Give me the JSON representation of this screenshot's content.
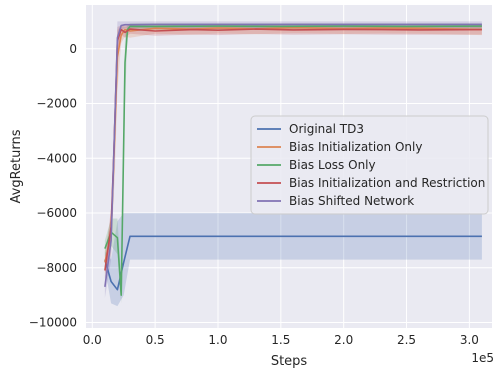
{
  "chart_data": {
    "type": "line",
    "xlabel": "Steps",
    "ylabel": "AvgReturns",
    "x_offset_label": "1e5",
    "xlim": [
      -0.05,
      3.18
    ],
    "ylim": [
      -10200,
      1600
    ],
    "xticks": [
      0.0,
      0.5,
      1.0,
      1.5,
      2.0,
      2.5,
      3.0
    ],
    "xtick_labels": [
      "0.0",
      "0.5",
      "1.0",
      "1.5",
      "2.0",
      "2.5",
      "3.0"
    ],
    "yticks": [
      0,
      -2000,
      -4000,
      -6000,
      -8000,
      -10000
    ],
    "ytick_labels": [
      "0",
      "−2000",
      "−4000",
      "−6000",
      "−8000",
      "−10000"
    ],
    "grid": true,
    "legend_position": "center-right",
    "background_color": "#eaeaf2",
    "series": [
      {
        "name": "Original TD3",
        "color": "#4c72b0",
        "x": [
          0.1,
          0.15,
          0.2,
          0.25,
          0.3,
          0.5,
          1.0,
          1.5,
          2.0,
          2.5,
          3.1
        ],
        "y": [
          -7700,
          -8500,
          -8800,
          -7800,
          -6850,
          -6850,
          -6850,
          -6850,
          -6850,
          -6850,
          -6850
        ],
        "band_low": [
          -8000,
          -9300,
          -9400,
          -9000,
          -7700,
          -7700,
          -7700,
          -7700,
          -7700,
          -7700,
          -7700
        ],
        "band_high": [
          -7400,
          -7700,
          -6300,
          -6000,
          -6000,
          -6000,
          -6000,
          -6000,
          -6000,
          -6000,
          -6000
        ]
      },
      {
        "name": "Bias Initialization Only",
        "color": "#dd8452",
        "x": [
          0.1,
          0.15,
          0.18,
          0.2,
          0.23,
          0.26,
          0.3,
          0.5,
          0.8,
          1.0,
          1.3,
          1.6,
          2.0,
          2.3,
          2.6,
          3.1
        ],
        "y": [
          -7800,
          -6800,
          -3000,
          -300,
          500,
          700,
          650,
          750,
          720,
          760,
          730,
          770,
          740,
          760,
          750,
          700
        ],
        "band_low": [
          -8200,
          -7500,
          -4500,
          -1500,
          200,
          450,
          400,
          550,
          520,
          560,
          530,
          570,
          540,
          560,
          550,
          500
        ],
        "band_high": [
          -7400,
          -6100,
          -1500,
          700,
          800,
          900,
          850,
          900,
          880,
          910,
          890,
          920,
          900,
          910,
          900,
          880
        ]
      },
      {
        "name": "Bias Loss Only",
        "color": "#55a868",
        "x": [
          0.1,
          0.15,
          0.2,
          0.23,
          0.26,
          0.28,
          0.3,
          0.5,
          1.0,
          1.5,
          2.0,
          2.5,
          3.1
        ],
        "y": [
          -7300,
          -6700,
          -6900,
          -9000,
          -500,
          700,
          820,
          820,
          830,
          820,
          830,
          820,
          830
        ],
        "band_low": [
          -7600,
          -7200,
          -7500,
          -9300,
          -2000,
          500,
          700,
          700,
          700,
          700,
          700,
          700,
          700
        ],
        "band_high": [
          -7000,
          -6200,
          -6200,
          -8400,
          500,
          850,
          930,
          930,
          930,
          930,
          930,
          930,
          930
        ]
      },
      {
        "name": "Bias Initialization and Restriction",
        "color": "#c44e52",
        "x": [
          0.1,
          0.15,
          0.17,
          0.2,
          0.23,
          0.26,
          0.3,
          0.5,
          0.8,
          1.0,
          1.3,
          1.6,
          2.0,
          2.3,
          2.6,
          3.1
        ],
        "y": [
          -8100,
          -6500,
          -4000,
          300,
          700,
          600,
          720,
          650,
          700,
          680,
          720,
          690,
          710,
          700,
          690,
          700
        ],
        "band_low": [
          -8400,
          -7200,
          -5000,
          -500,
          500,
          400,
          550,
          480,
          520,
          500,
          540,
          510,
          530,
          520,
          510,
          520
        ],
        "band_high": [
          -7800,
          -5800,
          -3000,
          800,
          850,
          800,
          870,
          820,
          850,
          840,
          870,
          850,
          860,
          850,
          840,
          860
        ]
      },
      {
        "name": "Bias Shifted Network",
        "color": "#8172b3",
        "x": [
          0.1,
          0.15,
          0.17,
          0.2,
          0.23,
          0.26,
          0.3,
          0.5,
          1.0,
          1.5,
          2.0,
          2.5,
          3.1
        ],
        "y": [
          -8700,
          -7000,
          -4000,
          400,
          850,
          880,
          880,
          890,
          890,
          890,
          890,
          890,
          890
        ],
        "band_low": [
          -9100,
          -7700,
          -5000,
          -300,
          700,
          750,
          750,
          760,
          760,
          760,
          760,
          760,
          760
        ],
        "band_high": [
          -8300,
          -6300,
          -3000,
          1000,
          1000,
          1000,
          1000,
          1000,
          1000,
          1000,
          1000,
          1000,
          1000
        ]
      }
    ]
  }
}
